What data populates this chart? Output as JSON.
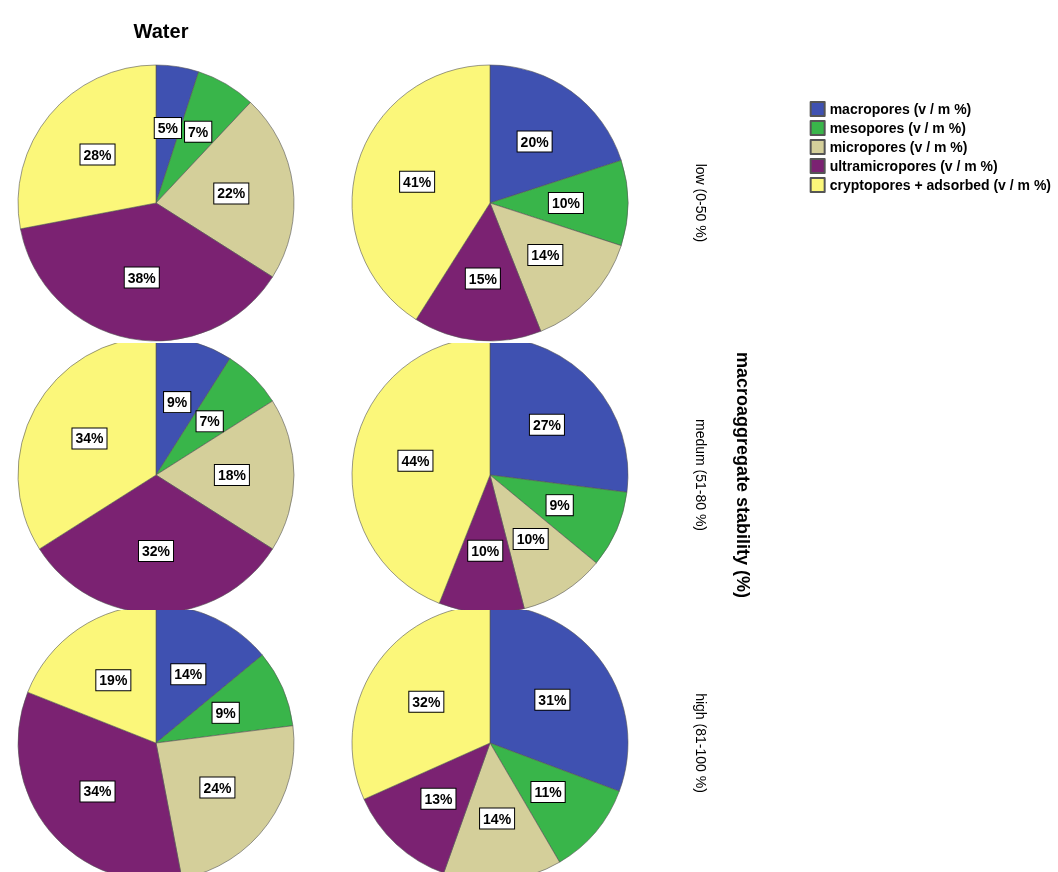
{
  "chart_data": [
    {
      "type": "pie",
      "title": "Water",
      "values": [
        5,
        7,
        22,
        38,
        28
      ],
      "value_labels": [
        "5%",
        "7%",
        "22%",
        "38%",
        "28%"
      ],
      "colors": [
        "#3f51b1",
        "#39b54a",
        "#d4cf9a",
        "#7b2272",
        "#fbf77a"
      ],
      "legend": false
    },
    {
      "type": "pie",
      "y2label": "low (0-50 %)",
      "categories": [
        "macropores (v / m %)",
        "mesopores (v / m %)",
        "micropores (v / m %)",
        "ultramicropores (v / m %)",
        "cryptopores + adsorbed (v / m %)"
      ],
      "values": [
        20,
        10,
        14,
        15,
        41
      ],
      "value_labels": [
        "20%",
        "10%",
        "14%",
        "15%",
        "41%"
      ],
      "colors": [
        "#3f51b1",
        "#39b54a",
        "#d4cf9a",
        "#7b2272",
        "#fbf77a"
      ],
      "legend": "top right"
    },
    {
      "type": "pie",
      "values": [
        9,
        7,
        18,
        32,
        34
      ],
      "value_labels": [
        "9%",
        "7%",
        "18%",
        "32%",
        "34%"
      ],
      "colors": [
        "#3f51b1",
        "#39b54a",
        "#d4cf9a",
        "#7b2272",
        "#fbf77a"
      ],
      "legend": false
    },
    {
      "type": "pie",
      "y2label": "medum (51-80 %)",
      "annotations": [
        "macroaggregate stability (%)"
      ],
      "values": [
        27,
        9,
        10,
        10,
        44
      ],
      "value_labels": [
        "27%",
        "9%",
        "10%",
        "10%",
        "44%"
      ],
      "colors": [
        "#3f51b1",
        "#39b54a",
        "#d4cf9a",
        "#7b2272",
        "#fbf77a"
      ],
      "legend": false
    },
    {
      "type": "pie",
      "values": [
        14,
        9,
        24,
        34,
        19
      ],
      "value_labels": [
        "14%",
        "9%",
        "24%",
        "34%",
        "19%"
      ],
      "colors": [
        "#3f51b1",
        "#39b54a",
        "#d4cf9a",
        "#7b2272",
        "#fbf77a"
      ],
      "legend": false
    },
    {
      "type": "pie",
      "y2label": "high (81-100 %)",
      "values": [
        31,
        11,
        14,
        13,
        32
      ],
      "value_labels": [
        "31%",
        "11%",
        "14%",
        "13%",
        "32%"
      ],
      "colors": [
        "#3f51b1",
        "#39b54a",
        "#d4cf9a",
        "#7b2272",
        "#fbf77a"
      ],
      "legend": false
    }
  ]
}
